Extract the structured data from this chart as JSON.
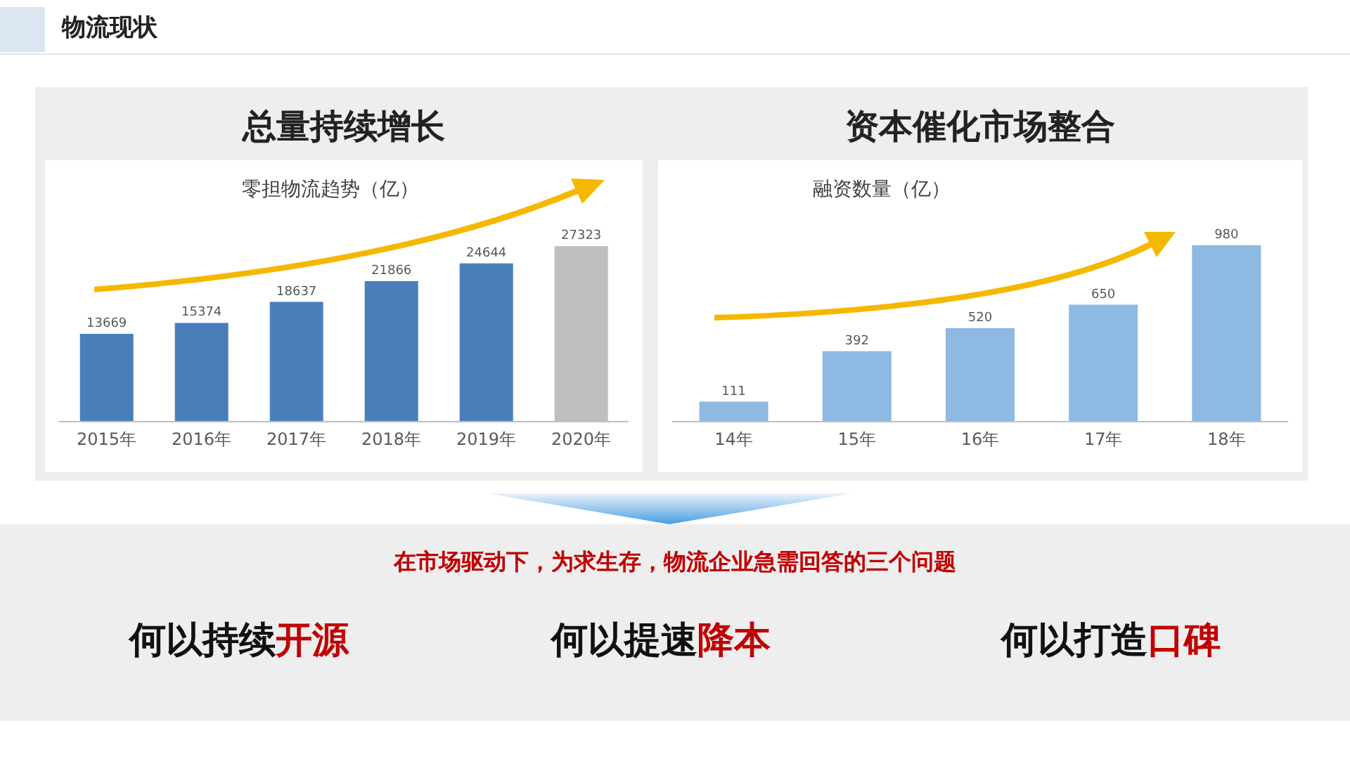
{
  "chart_data": [
    {
      "type": "bar",
      "title": "总量持续增长",
      "subtitle": "零担物流趋势（亿）",
      "categories": [
        "2015年",
        "2016年",
        "2017年",
        "2018年",
        "2019年",
        "2020年"
      ],
      "values": [
        13669,
        15374,
        18637,
        21866,
        24644,
        27323
      ],
      "colors": [
        "#4a7ebb",
        "#4a7ebb",
        "#4a7ebb",
        "#4a7ebb",
        "#4a7ebb",
        "#bfbfbf"
      ],
      "data_labels": true,
      "annotations": [
        "物流现状",
        "在市场驱动下，为求生存，物流企业急需回答的三个问题",
        "何以持续",
        "开源",
        "何以提速",
        "降本",
        "何以打造",
        "口碑"
      ]
    },
    {
      "type": "bar",
      "title": "资本催化市场整合",
      "subtitle": "融资数量（亿）",
      "categories": [
        "14年",
        "15年",
        "16年",
        "17年",
        "18年"
      ],
      "values": [
        111,
        392,
        520,
        650,
        980
      ],
      "colors": [
        "#8db9e2",
        "#8db9e2",
        "#8db9e2",
        "#8db9e2",
        "#8db9e2"
      ],
      "data_labels": true
    }
  ]
}
